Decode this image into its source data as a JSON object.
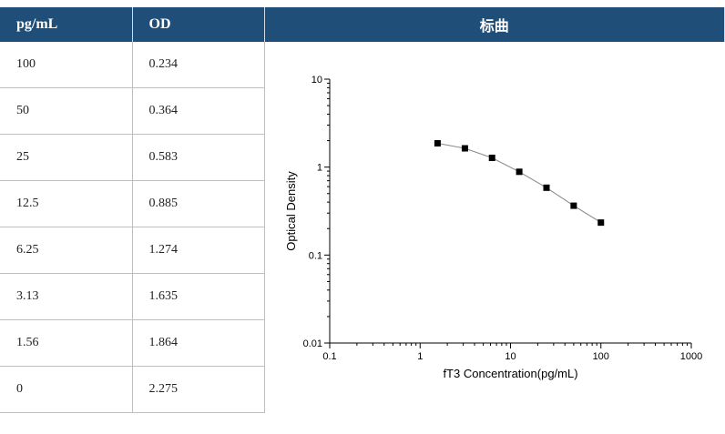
{
  "headers": {
    "conc": "pg/mL",
    "od": "OD",
    "curve": "标曲"
  },
  "rows": [
    {
      "conc": "100",
      "od": "0.234"
    },
    {
      "conc": "50",
      "od": "0.364"
    },
    {
      "conc": "25",
      "od": "0.583"
    },
    {
      "conc": "12.5",
      "od": "0.885"
    },
    {
      "conc": "6.25",
      "od": "1.274"
    },
    {
      "conc": "3.13",
      "od": "1.635"
    },
    {
      "conc": "1.56",
      "od": "1.864"
    },
    {
      "conc": "0",
      "od": "2.275"
    }
  ],
  "chart_data": {
    "type": "line",
    "xscale": "log",
    "yscale": "log",
    "xlabel": "fT3  Concentration(pg/mL)",
    "ylabel": "Optical Density",
    "xlim": [
      0.1,
      1000
    ],
    "ylim": [
      0.01,
      10
    ],
    "x_ticks": [
      "0.1",
      "1",
      "10",
      "100",
      "1000"
    ],
    "y_ticks": [
      "0.01",
      "0.1",
      "1",
      "10"
    ],
    "series": [
      {
        "x": [
          1.56,
          3.13,
          6.25,
          12.5,
          25,
          50,
          100
        ],
        "y": [
          1.864,
          1.635,
          1.274,
          0.885,
          0.583,
          0.364,
          0.234
        ]
      }
    ],
    "marker": "square",
    "color": "#000000"
  }
}
